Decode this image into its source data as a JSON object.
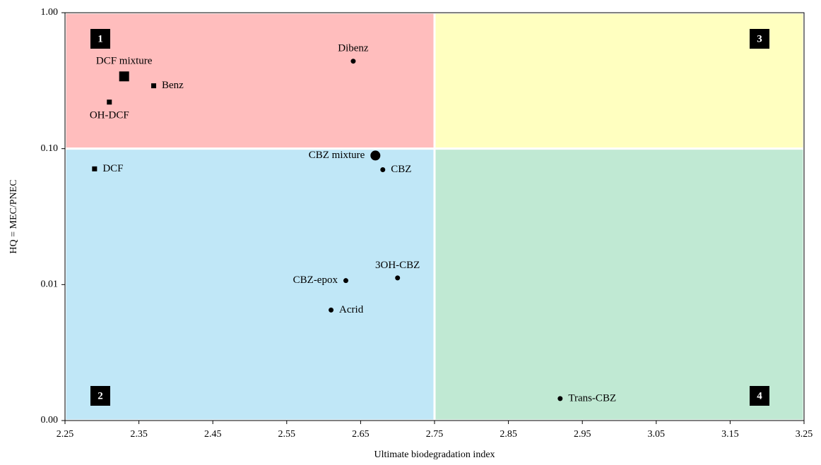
{
  "chart_data": {
    "type": "scatter",
    "xlabel": "Ultimate biodegradation index",
    "ylabel": "HQ = MEC/PNEC",
    "xlim": [
      2.25,
      3.25
    ],
    "xticks": [
      2.25,
      2.35,
      2.45,
      2.55,
      2.65,
      2.75,
      2.85,
      2.95,
      3.05,
      3.15,
      3.25
    ],
    "ylim": [
      0.001,
      1
    ],
    "yscale": "log",
    "yticks": [
      {
        "value": 0.001,
        "label": "0.00"
      },
      {
        "value": 0.01,
        "label": "0.01"
      },
      {
        "value": 0.1,
        "label": "0.10"
      },
      {
        "value": 1,
        "label": "1.00"
      }
    ],
    "quadrants": [
      {
        "label": "1",
        "color": "#ffbdbd",
        "corner": "top-left",
        "xlim": [
          2.25,
          2.75
        ],
        "ylim": [
          0.1,
          1
        ]
      },
      {
        "label": "2",
        "color": "#c0e7f7",
        "corner": "bottom-left",
        "xlim": [
          2.25,
          2.75
        ],
        "ylim": [
          0.001,
          0.1
        ]
      },
      {
        "label": "3",
        "color": "#ffffc0",
        "corner": "top-right",
        "xlim": [
          2.75,
          3.25
        ],
        "ylim": [
          0.1,
          1
        ]
      },
      {
        "label": "4",
        "color": "#c0e9d3",
        "corner": "bottom-right",
        "xlim": [
          2.75,
          3.25
        ],
        "ylim": [
          0.001,
          0.1
        ]
      }
    ],
    "labels": [
      "DCF mixture",
      "Benz",
      "OH-DCF",
      "DCF",
      "Dibenz",
      "CBZ mixture",
      "CBZ",
      "3OH-CBZ",
      "CBZ-epox",
      "Acrid",
      "Trans-CBZ"
    ],
    "x": [
      2.33,
      2.37,
      2.31,
      2.29,
      2.64,
      2.67,
      2.68,
      2.7,
      2.63,
      2.61,
      2.92
    ],
    "y": [
      0.34,
      0.29,
      0.22,
      0.071,
      0.44,
      0.089,
      0.07,
      0.0112,
      0.0107,
      0.0065,
      0.00145
    ],
    "markers": [
      "large-square",
      "square",
      "square",
      "square",
      "circle",
      "large-circle",
      "circle",
      "circle",
      "circle",
      "circle",
      "circle"
    ],
    "label_positions": [
      "above",
      "right",
      "below",
      "right",
      "above",
      "left",
      "right",
      "above",
      "left",
      "right",
      "right"
    ],
    "color": "#000000"
  }
}
